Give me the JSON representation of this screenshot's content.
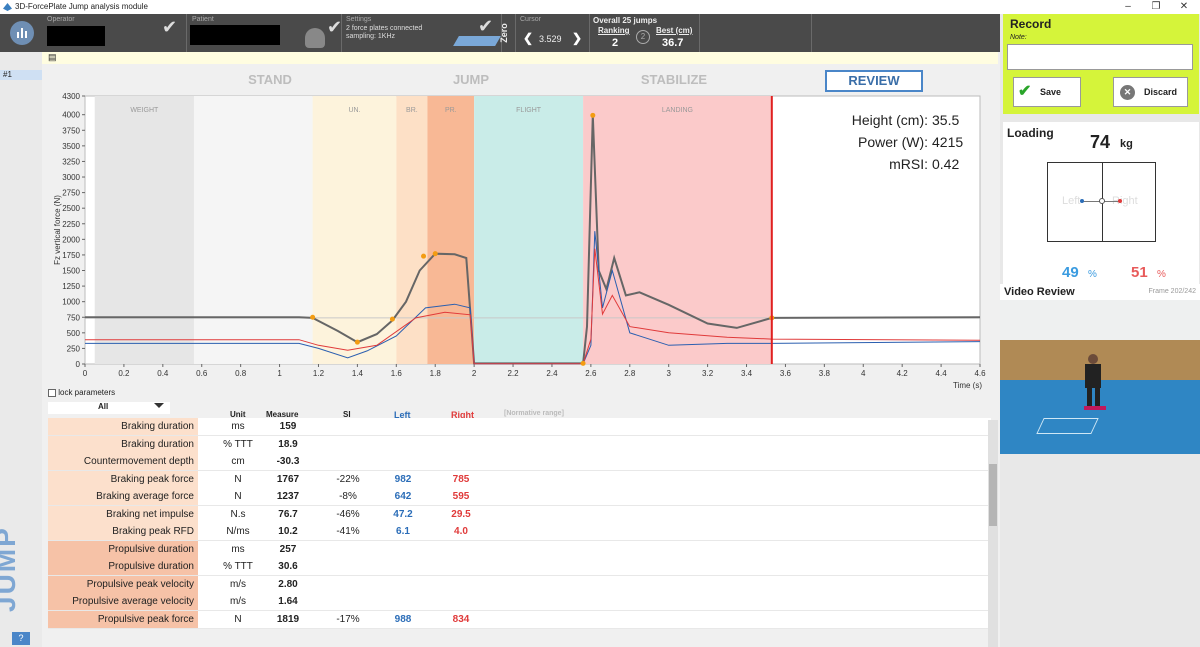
{
  "window": {
    "title": "3D-ForcePlate Jump analysis module"
  },
  "topbar": {
    "operator_label": "Operator",
    "patient_label": "Patient",
    "settings_label": "Settings",
    "settings_line1": "2 force plates connected",
    "settings_line2": "sampling: 1KHz",
    "zero_label": "Zero",
    "cursor_label": "Cursor",
    "cursor_value": "3.529",
    "overall_label": "Overall 25 jumps",
    "ranking_label": "Ranking",
    "ranking_value": "2",
    "best_label": "Best (cm)",
    "best_value": "36.7"
  },
  "sidebar": {
    "tab_label": "#1",
    "big_label": "JUMP",
    "help_label": "?"
  },
  "phases": [
    "STAND",
    "JUMP",
    "STABILIZE",
    "REVIEW"
  ],
  "chart_data": {
    "type": "line",
    "ylabel": "Fz vertical force (N)",
    "xlabel": "Time (s)",
    "xlim": [
      0,
      4.6
    ],
    "ylim": [
      0,
      4300
    ],
    "x_ticks": [
      "0",
      "0.2",
      "0.4",
      "0.6",
      "0.8",
      "1",
      "1.2",
      "1.4",
      "1.6",
      "1.8",
      "2",
      "2.2",
      "2.4",
      "2.6",
      "2.8",
      "3",
      "3.2",
      "3.4",
      "3.6",
      "3.8",
      "4",
      "4.2",
      "4.4",
      "4.6"
    ],
    "y_ticks": [
      "0",
      "250",
      "500",
      "750",
      "1000",
      "1250",
      "1500",
      "1750",
      "2000",
      "2250",
      "2500",
      "2750",
      "3000",
      "3250",
      "3500",
      "3750",
      "4000",
      "4300"
    ],
    "regions": [
      {
        "label": "WEIGHT",
        "start": 0.05,
        "end": 0.56,
        "color": "#e6e6e6"
      },
      {
        "label": "UN.",
        "start": 1.17,
        "end": 1.6,
        "color": "#fdf3dc"
      },
      {
        "label": "BR.",
        "start": 1.6,
        "end": 1.76,
        "color": "#fde0c6"
      },
      {
        "label": "PR.",
        "start": 1.76,
        "end": 2.0,
        "color": "#f8b895"
      },
      {
        "label": "FLIGHT",
        "start": 2.0,
        "end": 2.56,
        "color": "#c9ece8"
      },
      {
        "label": "LANDING",
        "start": 2.56,
        "end": 3.53,
        "color": "#fbcaca"
      }
    ],
    "cursor_x": 3.53,
    "weight_line": 740,
    "series": [
      {
        "color": "#666666",
        "points": [
          [
            0,
            750
          ],
          [
            1.1,
            750
          ],
          [
            1.17,
            740
          ],
          [
            1.3,
            530
          ],
          [
            1.4,
            350
          ],
          [
            1.5,
            480
          ],
          [
            1.58,
            700
          ],
          [
            1.65,
            1000
          ],
          [
            1.72,
            1500
          ],
          [
            1.8,
            1770
          ],
          [
            1.9,
            1760
          ],
          [
            1.96,
            1700
          ],
          [
            2.0,
            10
          ],
          [
            2.56,
            10
          ],
          [
            2.58,
            600
          ],
          [
            2.61,
            3990
          ],
          [
            2.64,
            1500
          ],
          [
            2.68,
            1200
          ],
          [
            2.72,
            1700
          ],
          [
            2.78,
            1100
          ],
          [
            2.85,
            1150
          ],
          [
            3.0,
            950
          ],
          [
            3.2,
            650
          ],
          [
            3.35,
            580
          ],
          [
            3.53,
            740
          ],
          [
            4.6,
            750
          ]
        ]
      },
      {
        "color": "#2b5fb0",
        "points": [
          [
            0,
            330
          ],
          [
            1.1,
            330
          ],
          [
            1.2,
            250
          ],
          [
            1.35,
            100
          ],
          [
            1.45,
            210
          ],
          [
            1.6,
            450
          ],
          [
            1.75,
            900
          ],
          [
            1.9,
            960
          ],
          [
            1.98,
            900
          ],
          [
            2.0,
            5
          ],
          [
            2.56,
            5
          ],
          [
            2.6,
            300
          ],
          [
            2.62,
            2130
          ],
          [
            2.66,
            900
          ],
          [
            2.71,
            1500
          ],
          [
            2.8,
            500
          ],
          [
            3.0,
            300
          ],
          [
            3.3,
            330
          ],
          [
            3.53,
            330
          ],
          [
            4.6,
            360
          ]
        ]
      },
      {
        "color": "#e03a3a",
        "points": [
          [
            0,
            390
          ],
          [
            1.1,
            390
          ],
          [
            1.2,
            300
          ],
          [
            1.35,
            220
          ],
          [
            1.5,
            300
          ],
          [
            1.7,
            740
          ],
          [
            1.85,
            830
          ],
          [
            1.98,
            790
          ],
          [
            2.0,
            5
          ],
          [
            2.56,
            5
          ],
          [
            2.6,
            400
          ],
          [
            2.62,
            1850
          ],
          [
            2.66,
            800
          ],
          [
            2.71,
            1100
          ],
          [
            2.8,
            600
          ],
          [
            3.0,
            500
          ],
          [
            3.3,
            430
          ],
          [
            3.53,
            400
          ],
          [
            4.6,
            380
          ]
        ]
      }
    ],
    "stats": [
      {
        "label": "Height (cm):",
        "value": "35.5"
      },
      {
        "label": "Power (W):",
        "value": "4215"
      },
      {
        "label": "mRSI:",
        "value": "0.42"
      }
    ]
  },
  "table": {
    "lock_label": "lock parameters",
    "filter_value": "All",
    "headers": {
      "unit": "Unit",
      "measure": "Measure",
      "si": "SI",
      "left": "Left",
      "right": "Right",
      "norm": "[Normative range]"
    },
    "rows": [
      {
        "label": "Braking duration",
        "unit": "ms",
        "measure": "159",
        "si": "",
        "left": "",
        "right": "",
        "kind": "brake"
      },
      {
        "label": "Braking duration",
        "unit": "% TTT",
        "measure": "18.9",
        "si": "",
        "left": "",
        "right": "",
        "kind": "brake"
      },
      {
        "label": "Countermovement depth",
        "unit": "cm",
        "measure": "-30.3",
        "si": "",
        "left": "",
        "right": "",
        "kind": "brake"
      },
      {
        "label": "Braking peak force",
        "unit": "N",
        "measure": "1767",
        "si": "-22%",
        "left": "982",
        "right": "785",
        "kind": "brake"
      },
      {
        "label": "Braking average force",
        "unit": "N",
        "measure": "1237",
        "si": "-8%",
        "left": "642",
        "right": "595",
        "kind": "brake"
      },
      {
        "label": "Braking net impulse",
        "unit": "N.s",
        "measure": "76.7",
        "si": "-46%",
        "left": "47.2",
        "right": "29.5",
        "kind": "brake"
      },
      {
        "label": "Braking peak RFD",
        "unit": "N/ms",
        "measure": "10.2",
        "si": "-41%",
        "left": "6.1",
        "right": "4.0",
        "kind": "brake"
      },
      {
        "label": "Propulsive duration",
        "unit": "ms",
        "measure": "257",
        "si": "",
        "left": "",
        "right": "",
        "kind": "prop"
      },
      {
        "label": "Propulsive duration",
        "unit": "% TTT",
        "measure": "30.6",
        "si": "",
        "left": "",
        "right": "",
        "kind": "prop"
      },
      {
        "label": "Propulsive peak velocity",
        "unit": "m/s",
        "measure": "2.80",
        "si": "",
        "left": "",
        "right": "",
        "kind": "prop"
      },
      {
        "label": "Propulsive average velocity",
        "unit": "m/s",
        "measure": "1.64",
        "si": "",
        "left": "",
        "right": "",
        "kind": "prop"
      },
      {
        "label": "Propulsive peak force",
        "unit": "N",
        "measure": "1819",
        "si": "-17%",
        "left": "988",
        "right": "834",
        "kind": "prop"
      }
    ]
  },
  "record": {
    "title": "Record",
    "note_label": "Note:",
    "save_label": "Save",
    "discard_label": "Discard"
  },
  "loading": {
    "title": "Loading",
    "weight_value": "74",
    "weight_unit": "kg",
    "left_label": "Left",
    "right_label": "Right",
    "left_pct": "49",
    "right_pct": "51",
    "pct_unit": "%"
  },
  "video": {
    "title": "Video Review",
    "frame_label": "Frame 202/242"
  }
}
